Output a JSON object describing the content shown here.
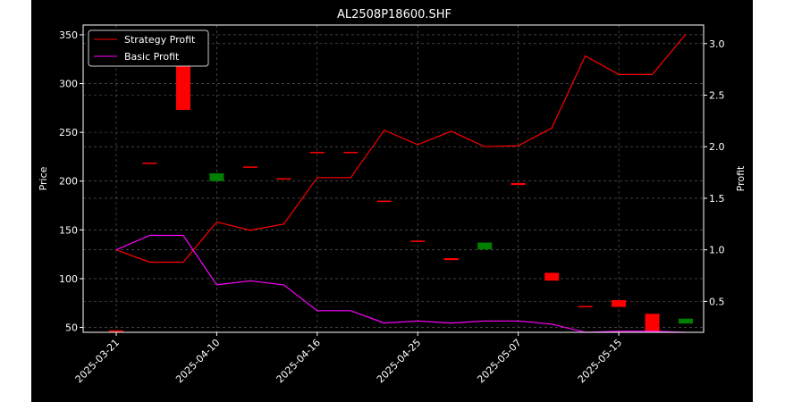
{
  "chart_data": {
    "type": "candlestick+line",
    "title": "AL2508P18600.SHF",
    "ylabel_left": "Price",
    "ylabel_right": "Profit",
    "ylim_left": [
      45,
      360
    ],
    "ylim_right": [
      0.2,
      3.18
    ],
    "yticks_left": [
      "50",
      "100",
      "150",
      "200",
      "250",
      "300",
      "350"
    ],
    "yticks_right": [
      "0.5",
      "1.0",
      "1.5",
      "2.0",
      "2.5",
      "3.0"
    ],
    "xticks": [
      "2025-03-21",
      "2025-04-10",
      "2025-04-16",
      "2025-04-25",
      "2025-05-07",
      "2025-05-15"
    ],
    "xtick_index": [
      0,
      3,
      6,
      9,
      12,
      15
    ],
    "grid": true,
    "legend_position": "top-left",
    "background": "#000000",
    "colors": {
      "up": "#008000",
      "down": "#ff0000",
      "strategy": "#ff0000",
      "basic": "#ff00ff",
      "grid": "#666666",
      "axes": "#ffffff"
    },
    "candles": [
      {
        "open": 47,
        "close": 47
      },
      {
        "open": 219,
        "close": 219
      },
      {
        "open": 352,
        "close": 273
      },
      {
        "open": 200,
        "close": 208
      },
      {
        "open": 215,
        "close": 215
      },
      {
        "open": 203,
        "close": 203
      },
      {
        "open": 230,
        "close": 230
      },
      {
        "open": 230,
        "close": 230
      },
      {
        "open": 180,
        "close": 180
      },
      {
        "open": 139,
        "close": 139
      },
      {
        "open": 121,
        "close": 119
      },
      {
        "open": 130,
        "close": 137
      },
      {
        "open": 198,
        "close": 196
      },
      {
        "open": 106,
        "close": 98
      },
      {
        "open": 72,
        "close": 72
      },
      {
        "open": 78,
        "close": 71
      },
      {
        "open": 64,
        "close": 46
      },
      {
        "open": 54,
        "close": 59
      }
    ],
    "series": [
      {
        "name": "Strategy Profit",
        "axis": "right",
        "values": [
          1.0,
          0.88,
          0.88,
          1.27,
          1.19,
          1.25,
          1.7,
          1.7,
          2.16,
          2.02,
          2.15,
          2.0,
          2.01,
          2.18,
          2.88,
          2.7,
          2.7,
          3.09
        ]
      },
      {
        "name": "Basic Profit",
        "axis": "right",
        "values": [
          1.0,
          1.14,
          1.14,
          0.66,
          0.7,
          0.66,
          0.41,
          0.41,
          0.29,
          0.31,
          0.29,
          0.31,
          0.31,
          0.28,
          0.2,
          0.21,
          0.21,
          0.2
        ]
      }
    ]
  }
}
